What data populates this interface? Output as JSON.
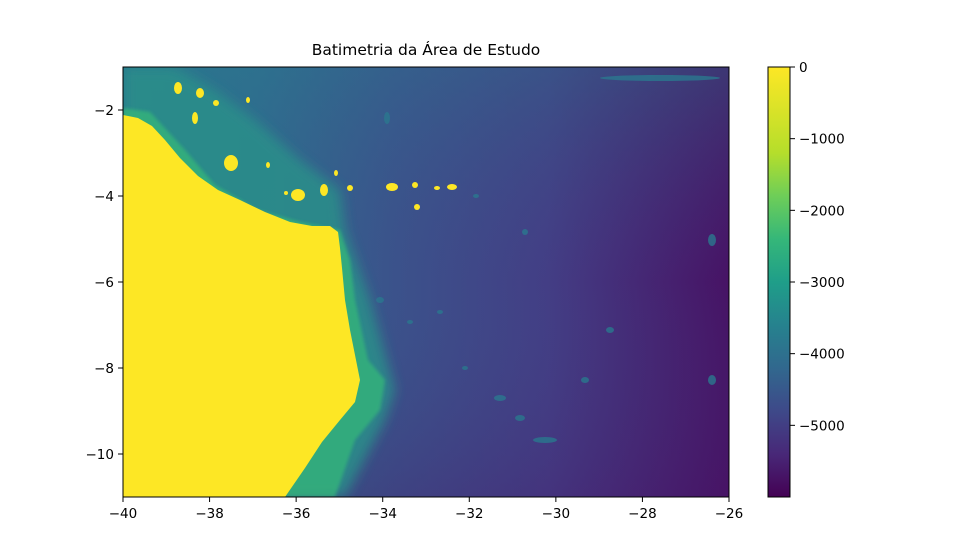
{
  "title": "Batimetria da Área de Estudo",
  "colors": {
    "land": "#fde725",
    "shelf_green": "#35b779",
    "slope_teal": "#2a788e",
    "mid_blue": "#3b528b",
    "deep": "#471365",
    "frame": "#000000"
  },
  "map": {
    "xlim": [
      -40,
      -26
    ],
    "ylim": [
      -11,
      -1
    ],
    "x_ticks": [
      {
        "value": -40,
        "label": "−40"
      },
      {
        "value": -38,
        "label": "−38"
      },
      {
        "value": -36,
        "label": "−36"
      },
      {
        "value": -34,
        "label": "−34"
      },
      {
        "value": -32,
        "label": "−32"
      },
      {
        "value": -30,
        "label": "−30"
      },
      {
        "value": -28,
        "label": "−28"
      },
      {
        "value": -26,
        "label": "−26"
      }
    ],
    "y_ticks": [
      {
        "value": -2,
        "label": "−2"
      },
      {
        "value": -4,
        "label": "−4"
      },
      {
        "value": -6,
        "label": "−6"
      },
      {
        "value": -8,
        "label": "−8"
      },
      {
        "value": -10,
        "label": "−10"
      }
    ]
  },
  "colorbar": {
    "range": [
      -6000,
      0
    ],
    "colormap": "viridis",
    "ticks": [
      {
        "value": 0,
        "label": "0"
      },
      {
        "value": -1000,
        "label": "−1000"
      },
      {
        "value": -2000,
        "label": "−2000"
      },
      {
        "value": -3000,
        "label": "−3000"
      },
      {
        "value": -4000,
        "label": "−4000"
      },
      {
        "value": -5000,
        "label": "−5000"
      }
    ]
  }
}
